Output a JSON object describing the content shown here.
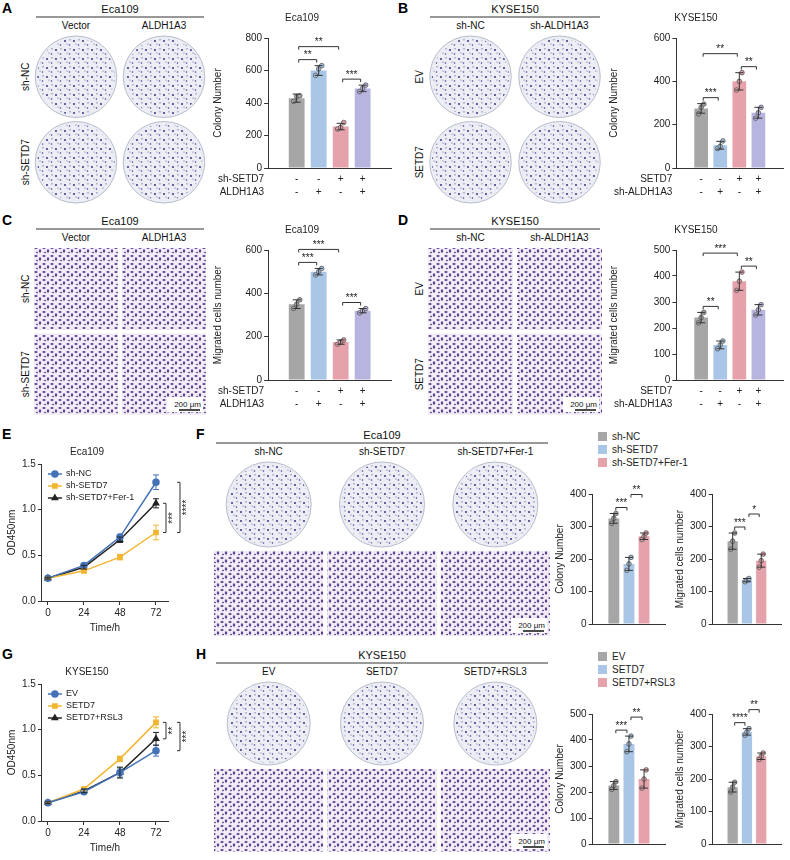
{
  "images": [
    {
      "panel": "A",
      "title": "Eca109",
      "columns": [
        "Vector",
        "ALDH1A3"
      ],
      "rows": [
        {
          "label": "sh-NC",
          "type": "colony"
        },
        {
          "label": "sh-SETD7",
          "type": "colony"
        }
      ]
    },
    {
      "panel": "B",
      "title": "KYSE150",
      "columns": [
        "sh-NC",
        "sh-ALDH1A3"
      ],
      "rows": [
        {
          "label": "EV",
          "type": "colony"
        },
        {
          "label": "SETD7",
          "type": "colony"
        }
      ]
    },
    {
      "panel": "C",
      "title": "Eca109",
      "columns": [
        "Vector",
        "ALDH1A3"
      ],
      "rows": [
        {
          "label": "sh-NC",
          "type": "transwell"
        },
        {
          "label": "sh-SETD7",
          "type": "transwell",
          "scale_bar": "200 μm"
        }
      ]
    },
    {
      "panel": "D",
      "title": "KYSE150",
      "columns": [
        "sh-NC",
        "sh-ALDH1A3"
      ],
      "rows": [
        {
          "label": "EV",
          "type": "transwell"
        },
        {
          "label": "SETD7",
          "type": "transwell",
          "scale_bar": "200 μm"
        }
      ]
    },
    {
      "panel": "F",
      "title": "Eca109",
      "columns": [
        "sh-NC",
        "sh-SETD7",
        "sh-SETD7+Fer-1"
      ],
      "rows": [
        {
          "type": "colony"
        },
        {
          "type": "transwell",
          "scale_bar": "200 μm"
        }
      ]
    },
    {
      "panel": "H",
      "title": "KYSE150",
      "columns": [
        "EV",
        "SETD7",
        "SETD7+RSL3"
      ],
      "rows": [
        {
          "type": "colony"
        },
        {
          "type": "transwell",
          "scale_bar": "200 μm"
        }
      ]
    }
  ],
  "chart_data": [
    {
      "type": "bar",
      "title": "Eca109",
      "y_label": "Colony Number",
      "values": [
        430,
        600,
        255,
        490
      ],
      "errors": [
        25,
        30,
        20,
        20
      ],
      "points": [
        [
          410,
          440,
          445
        ],
        [
          570,
          610,
          630
        ],
        [
          240,
          250,
          280
        ],
        [
          470,
          490,
          510
        ]
      ],
      "colors": [
        "#a6a6a6",
        "#a9c6e6",
        "#e6a2aa",
        "#b8b4e0"
      ],
      "conditions": [
        {
          "name": "sh-SETD7",
          "signs": [
            "-",
            "-",
            "+",
            "+"
          ]
        },
        {
          "name": "ALDH1A3",
          "signs": [
            "-",
            "+",
            "-",
            "+"
          ]
        }
      ],
      "significance": [
        {
          "from": 0,
          "to": 1,
          "label": "**"
        },
        {
          "from": 0,
          "to": 2,
          "label": "**"
        },
        {
          "from": 2,
          "to": 3,
          "label": "***"
        }
      ],
      "ylim": [
        0,
        800
      ],
      "yticks": [
        0,
        200,
        400,
        600,
        800
      ],
      "grid": false,
      "tick_labels": "y"
    },
    {
      "type": "bar",
      "title": "KYSE150",
      "y_label": "Colony Number",
      "values": [
        275,
        105,
        400,
        255
      ],
      "errors": [
        22,
        18,
        40,
        25
      ],
      "points": [
        [
          250,
          280,
          295
        ],
        [
          90,
          100,
          125
        ],
        [
          360,
          400,
          440
        ],
        [
          230,
          255,
          280
        ]
      ],
      "colors": [
        "#a6a6a6",
        "#a9c6e6",
        "#e6a2aa",
        "#b8b4e0"
      ],
      "conditions": [
        {
          "name": "SETD7",
          "signs": [
            "-",
            "-",
            "+",
            "+"
          ]
        },
        {
          "name": "sh-ALDH1A3",
          "signs": [
            "-",
            "+",
            "-",
            "+"
          ]
        }
      ],
      "significance": [
        {
          "from": 0,
          "to": 1,
          "label": "***"
        },
        {
          "from": 0,
          "to": 2,
          "label": "**"
        },
        {
          "from": 2,
          "to": 3,
          "label": "**"
        }
      ],
      "ylim": [
        0,
        600
      ],
      "yticks": [
        0,
        200,
        400,
        600
      ],
      "grid": false,
      "tick_labels": "y"
    },
    {
      "type": "bar",
      "title": "Eca109",
      "y_label": "Migrated cells number",
      "values": [
        350,
        500,
        175,
        320
      ],
      "errors": [
        20,
        15,
        10,
        10
      ],
      "points": [
        [
          330,
          350,
          370
        ],
        [
          485,
          500,
          515
        ],
        [
          165,
          175,
          185
        ],
        [
          310,
          320,
          330
        ]
      ],
      "colors": [
        "#a6a6a6",
        "#a9c6e6",
        "#e6a2aa",
        "#b8b4e0"
      ],
      "conditions": [
        {
          "name": "sh-SETD7",
          "signs": [
            "-",
            "-",
            "+",
            "+"
          ]
        },
        {
          "name": "ALDH1A3",
          "signs": [
            "-",
            "+",
            "-",
            "+"
          ]
        }
      ],
      "significance": [
        {
          "from": 0,
          "to": 1,
          "label": "***"
        },
        {
          "from": 0,
          "to": 2,
          "label": "***"
        },
        {
          "from": 2,
          "to": 3,
          "label": "***"
        }
      ],
      "ylim": [
        0,
        600
      ],
      "yticks": [
        0,
        200,
        400,
        600
      ],
      "grid": false,
      "tick_labels": "y"
    },
    {
      "type": "bar",
      "title": "KYSE150",
      "y_label": "Migrated cells number",
      "values": [
        240,
        135,
        380,
        270
      ],
      "errors": [
        20,
        15,
        35,
        20
      ],
      "points": [
        [
          220,
          240,
          260
        ],
        [
          120,
          135,
          150
        ],
        [
          345,
          380,
          415
        ],
        [
          250,
          270,
          290
        ]
      ],
      "colors": [
        "#a6a6a6",
        "#a9c6e6",
        "#e6a2aa",
        "#b8b4e0"
      ],
      "conditions": [
        {
          "name": "SETD7",
          "signs": [
            "-",
            "-",
            "+",
            "+"
          ]
        },
        {
          "name": "sh-ALDH1A3",
          "signs": [
            "-",
            "+",
            "-",
            "+"
          ]
        }
      ],
      "significance": [
        {
          "from": 0,
          "to": 1,
          "label": "**"
        },
        {
          "from": 0,
          "to": 2,
          "label": "***"
        },
        {
          "from": 2,
          "to": 3,
          "label": "**"
        }
      ],
      "ylim": [
        0,
        500
      ],
      "yticks": [
        0,
        100,
        200,
        300,
        400,
        500
      ],
      "grid": false,
      "tick_labels": "y"
    },
    {
      "type": "line",
      "panel": "E",
      "title": "Eca109",
      "x_label": "Time/h",
      "y_label": "OD450nm",
      "x": [
        0,
        24,
        48,
        72
      ],
      "xlim": [
        -4,
        80
      ],
      "xticks": [
        0,
        24,
        48,
        72
      ],
      "ylim": [
        0,
        1.5
      ],
      "yticks": [
        {
          "value": 0,
          "label": "0.0"
        },
        {
          "value": 0.5,
          "label": "0.5"
        },
        {
          "value": 1,
          "label": "1.0"
        },
        {
          "value": 1.5,
          "label": "1.5"
        }
      ],
      "series": [
        {
          "name": "sh-NC",
          "color": "#4472b8",
          "marker": "circle",
          "values": [
            0.25,
            0.39,
            0.7,
            1.3
          ],
          "errors": [
            0.01,
            0.02,
            0.03,
            0.08
          ]
        },
        {
          "name": "sh-SETD7",
          "color": "#f2b632",
          "marker": "square",
          "values": [
            0.25,
            0.33,
            0.48,
            0.75
          ],
          "errors": [
            0.01,
            0.02,
            0.03,
            0.08
          ]
        },
        {
          "name": "sh-SETD7+Fer-1",
          "color": "#222222",
          "marker": "triangle",
          "values": [
            0.25,
            0.37,
            0.67,
            1.07
          ],
          "errors": [
            0.01,
            0.02,
            0.03,
            0.05
          ]
        }
      ],
      "significance": [
        {
          "from": 1,
          "to": 2,
          "label": "***"
        },
        {
          "from": 0,
          "to": 1,
          "label": "****"
        }
      ],
      "legend": "upper left",
      "grid": false
    },
    {
      "type": "bar",
      "y_label": "Colony Number",
      "categories": [
        "sh-NC",
        "sh-SETD7",
        "sh-SETD7+Fer-1"
      ],
      "legend": "top",
      "values": [
        325,
        185,
        270
      ],
      "errors": [
        15,
        20,
        10
      ],
      "points": [
        [
          310,
          325,
          340
        ],
        [
          165,
          185,
          205
        ],
        [
          260,
          270,
          280
        ]
      ],
      "colors": [
        "#a6a6a6",
        "#a9c6e6",
        "#e6a2aa"
      ],
      "significance": [
        {
          "from": 0,
          "to": 1,
          "label": "***"
        },
        {
          "from": 1,
          "to": 2,
          "label": "**"
        }
      ],
      "ylim": [
        0,
        400
      ],
      "yticks": [
        0,
        100,
        200,
        300,
        400
      ],
      "grid": false,
      "tick_labels": "y"
    },
    {
      "type": "bar",
      "y_label": "Migrated cells number",
      "values": [
        255,
        135,
        195
      ],
      "errors": [
        25,
        5,
        20
      ],
      "points": [
        [
          230,
          255,
          280
        ],
        [
          130,
          135,
          140
        ],
        [
          175,
          195,
          215
        ]
      ],
      "colors": [
        "#a6a6a6",
        "#a9c6e6",
        "#e6a2aa"
      ],
      "significance": [
        {
          "from": 0,
          "to": 1,
          "label": "***"
        },
        {
          "from": 1,
          "to": 2,
          "label": "*"
        }
      ],
      "ylim": [
        0,
        400
      ],
      "yticks": [
        0,
        100,
        200,
        300,
        400
      ],
      "grid": false,
      "tick_labels": "y"
    },
    {
      "type": "line",
      "panel": "G",
      "title": "KYSE150",
      "x_label": "Time/h",
      "y_label": "OD450nm",
      "x": [
        0,
        24,
        48,
        72
      ],
      "xlim": [
        -4,
        80
      ],
      "xticks": [
        0,
        24,
        48,
        72
      ],
      "ylim": [
        0,
        1.5
      ],
      "yticks": [
        {
          "value": 0,
          "label": "0.0"
        },
        {
          "value": 0.5,
          "label": "0.5"
        },
        {
          "value": 1,
          "label": "1.0"
        },
        {
          "value": 1.5,
          "label": "1.5"
        }
      ],
      "series": [
        {
          "name": "EV",
          "color": "#4472b8",
          "marker": "circle",
          "values": [
            0.2,
            0.32,
            0.53,
            0.77
          ],
          "errors": [
            0.01,
            0.02,
            0.05,
            0.06
          ]
        },
        {
          "name": "SETD7",
          "color": "#f2b632",
          "marker": "square",
          "values": [
            0.2,
            0.35,
            0.68,
            1.08
          ],
          "errors": [
            0.01,
            0.02,
            0.03,
            0.06
          ]
        },
        {
          "name": "SETD7+RSL3",
          "color": "#222222",
          "marker": "triangle",
          "values": [
            0.2,
            0.33,
            0.53,
            0.9
          ],
          "errors": [
            0.01,
            0.02,
            0.06,
            0.07
          ]
        }
      ],
      "significance": [
        {
          "from": 1,
          "to": 2,
          "label": "**"
        },
        {
          "from": 0,
          "to": 1,
          "label": "***"
        }
      ],
      "legend": "upper left",
      "grid": false
    },
    {
      "type": "bar",
      "y_label": "Colony Number",
      "categories": [
        "EV",
        "SETD7",
        "SETD7+RSL3"
      ],
      "legend": "top",
      "values": [
        225,
        385,
        250
      ],
      "errors": [
        15,
        30,
        35
      ],
      "points": [
        [
          210,
          225,
          240
        ],
        [
          355,
          385,
          415
        ],
        [
          215,
          250,
          285
        ]
      ],
      "colors": [
        "#a6a6a6",
        "#a9c6e6",
        "#e6a2aa"
      ],
      "significance": [
        {
          "from": 0,
          "to": 1,
          "label": "***"
        },
        {
          "from": 1,
          "to": 2,
          "label": "**"
        }
      ],
      "ylim": [
        0,
        500
      ],
      "yticks": [
        0,
        100,
        200,
        300,
        400,
        500
      ],
      "grid": false,
      "tick_labels": "y"
    },
    {
      "type": "bar",
      "y_label": "Migrated cells number",
      "values": [
        175,
        345,
        270
      ],
      "errors": [
        15,
        10,
        10
      ],
      "points": [
        [
          160,
          175,
          190
        ],
        [
          335,
          345,
          355
        ],
        [
          260,
          270,
          280
        ]
      ],
      "colors": [
        "#a6a6a6",
        "#a9c6e6",
        "#e6a2aa"
      ],
      "significance": [
        {
          "from": 0,
          "to": 1,
          "label": "****"
        },
        {
          "from": 1,
          "to": 2,
          "label": "**"
        }
      ],
      "ylim": [
        0,
        400
      ],
      "yticks": [
        0,
        100,
        200,
        300,
        400
      ],
      "grid": false,
      "tick_labels": "y"
    }
  ]
}
